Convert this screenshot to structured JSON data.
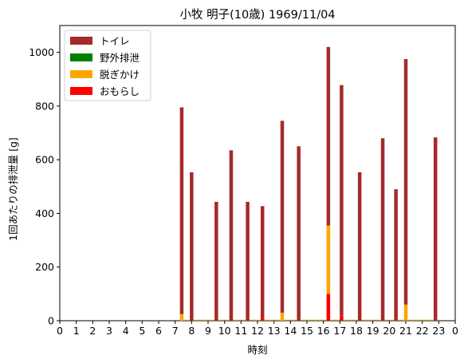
{
  "chart_data": {
    "type": "bar",
    "stacked": true,
    "title": "小牧 明子(10歳) 1969/11/04",
    "xlabel": "時刻",
    "ylabel": "1回あたりの排泄量 [g]",
    "xlim": [
      0,
      24
    ],
    "ylim": [
      0,
      1100
    ],
    "x_tick_labels": [
      "0",
      "1",
      "2",
      "3",
      "4",
      "5",
      "6",
      "7",
      "8",
      "9",
      "10",
      "11",
      "12",
      "13",
      "14",
      "15",
      "16",
      "17",
      "18",
      "19",
      "20",
      "21",
      "22",
      "23",
      "0"
    ],
    "y_ticks": [
      0,
      200,
      400,
      600,
      800,
      1000
    ],
    "legend_position": "upper-left",
    "series": [
      {
        "name": "おもらし",
        "color": "#ff0000"
      },
      {
        "name": "脱ぎかけ",
        "color": "#ffa500"
      },
      {
        "name": "野外排泄",
        "color": "#008000"
      },
      {
        "name": "トイレ",
        "color": "#a52a2a"
      }
    ],
    "events": [
      {
        "time": 7.4,
        "トイレ": 770,
        "脱ぎかけ": 25,
        "おもらし": 0
      },
      {
        "time": 8.0,
        "トイレ": 553,
        "脱ぎかけ": 0,
        "おもらし": 0
      },
      {
        "time": 9.5,
        "トイレ": 443,
        "脱ぎかけ": 0,
        "おもらし": 0
      },
      {
        "time": 10.4,
        "トイレ": 635,
        "脱ぎかけ": 0,
        "おもらし": 0
      },
      {
        "time": 11.4,
        "トイレ": 443,
        "脱ぎかけ": 0,
        "おもらし": 0
      },
      {
        "time": 12.3,
        "トイレ": 415,
        "脱ぎかけ": 0,
        "おもらし": 12
      },
      {
        "time": 13.5,
        "トイレ": 715,
        "脱ぎかけ": 30,
        "おもらし": 0
      },
      {
        "time": 14.5,
        "トイレ": 650,
        "脱ぎかけ": 0,
        "おもらし": 0
      },
      {
        "time": 16.3,
        "トイレ": 665,
        "脱ぎかけ": 255,
        "おもらし": 100
      },
      {
        "time": 17.1,
        "トイレ": 858,
        "脱ぎかけ": 0,
        "おもらし": 20
      },
      {
        "time": 18.2,
        "トイレ": 553,
        "脱ぎかけ": 0,
        "おもらし": 0
      },
      {
        "time": 19.6,
        "トイレ": 680,
        "脱ぎかけ": 0,
        "おもらし": 0
      },
      {
        "time": 20.4,
        "トイレ": 490,
        "脱ぎかけ": 0,
        "おもらし": 0
      },
      {
        "time": 21.0,
        "トイレ": 915,
        "脱ぎかけ": 60,
        "おもらし": 0
      },
      {
        "time": 22.8,
        "トイレ": 683,
        "脱ぎかけ": 0,
        "おもらし": 0
      }
    ]
  }
}
